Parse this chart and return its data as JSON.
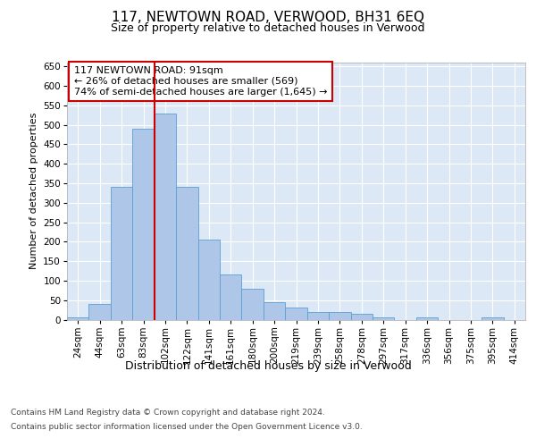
{
  "title": "117, NEWTOWN ROAD, VERWOOD, BH31 6EQ",
  "subtitle": "Size of property relative to detached houses in Verwood",
  "xlabel": "Distribution of detached houses by size in Verwood",
  "ylabel": "Number of detached properties",
  "categories": [
    "24sqm",
    "44sqm",
    "63sqm",
    "83sqm",
    "102sqm",
    "122sqm",
    "141sqm",
    "161sqm",
    "180sqm",
    "200sqm",
    "219sqm",
    "239sqm",
    "258sqm",
    "278sqm",
    "297sqm",
    "317sqm",
    "336sqm",
    "356sqm",
    "375sqm",
    "395sqm",
    "414sqm"
  ],
  "values": [
    5,
    40,
    340,
    490,
    530,
    340,
    205,
    115,
    80,
    45,
    30,
    20,
    20,
    15,
    5,
    0,
    5,
    0,
    0,
    5,
    0
  ],
  "bar_color": "#aec6e8",
  "bar_edge_color": "#5a9fd4",
  "vline_color": "#cc0000",
  "vline_x_index": 3.5,
  "annotation_text": "117 NEWTOWN ROAD: 91sqm\n← 26% of detached houses are smaller (569)\n74% of semi-detached houses are larger (1,645) →",
  "annotation_box_color": "#ffffff",
  "annotation_box_edge_color": "#cc0000",
  "ylim": [
    0,
    660
  ],
  "yticks": [
    0,
    50,
    100,
    150,
    200,
    250,
    300,
    350,
    400,
    450,
    500,
    550,
    600,
    650
  ],
  "bg_color": "#dce8f5",
  "fig_bg_color": "#ffffff",
  "footer_line1": "Contains HM Land Registry data © Crown copyright and database right 2024.",
  "footer_line2": "Contains public sector information licensed under the Open Government Licence v3.0.",
  "title_fontsize": 11,
  "subtitle_fontsize": 9,
  "xlabel_fontsize": 9,
  "ylabel_fontsize": 8,
  "tick_fontsize": 7.5,
  "annotation_fontsize": 8,
  "footer_fontsize": 6.5
}
